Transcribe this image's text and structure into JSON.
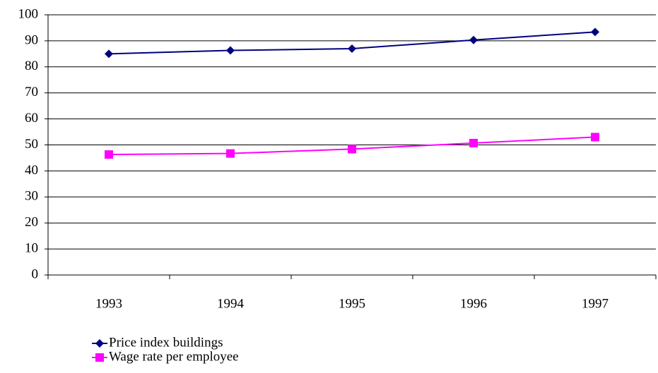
{
  "chart_data": {
    "type": "line",
    "categories": [
      "1993",
      "1994",
      "1995",
      "1996",
      "1997"
    ],
    "series": [
      {
        "name": "Price index buildings",
        "color": "#000080",
        "marker": "diamond",
        "values": [
          85,
          86.3,
          87,
          90.3,
          93.4
        ]
      },
      {
        "name": "Wage rate per employee",
        "color": "#ff00ff",
        "marker": "square",
        "values": [
          46.3,
          46.7,
          48.4,
          50.7,
          53
        ]
      }
    ],
    "ylim": [
      0,
      100
    ],
    "yticks": [
      0,
      10,
      20,
      30,
      40,
      50,
      60,
      70,
      80,
      90,
      100
    ],
    "grid": true,
    "legend": "bottom-left"
  }
}
